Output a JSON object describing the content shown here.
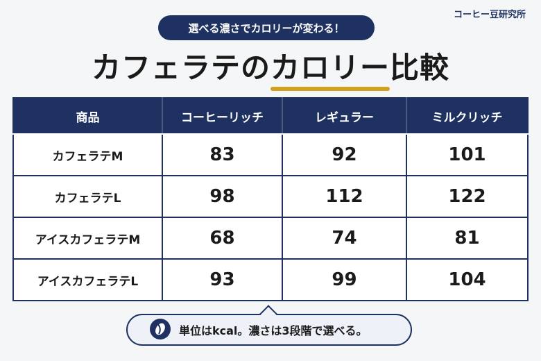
{
  "brand": "コーヒー豆研究所",
  "badge": "選べる濃さでカロリーが変わる！",
  "title": {
    "before": "カフェラテの",
    "highlight": "カロリー",
    "after": "比較"
  },
  "table": {
    "header": [
      "商品",
      "コーヒーリッチ",
      "レギュラー",
      "ミルクリッチ"
    ],
    "rows": [
      [
        "カフェラテM",
        83,
        92,
        101
      ],
      [
        "カフェラテL",
        98,
        112,
        122
      ],
      [
        "アイスカフェラテM",
        68,
        74,
        81
      ],
      [
        "アイスカフェラテL",
        93,
        99,
        104
      ]
    ]
  },
  "note": "単位はkcal。濃さは3段階で選べる。"
}
